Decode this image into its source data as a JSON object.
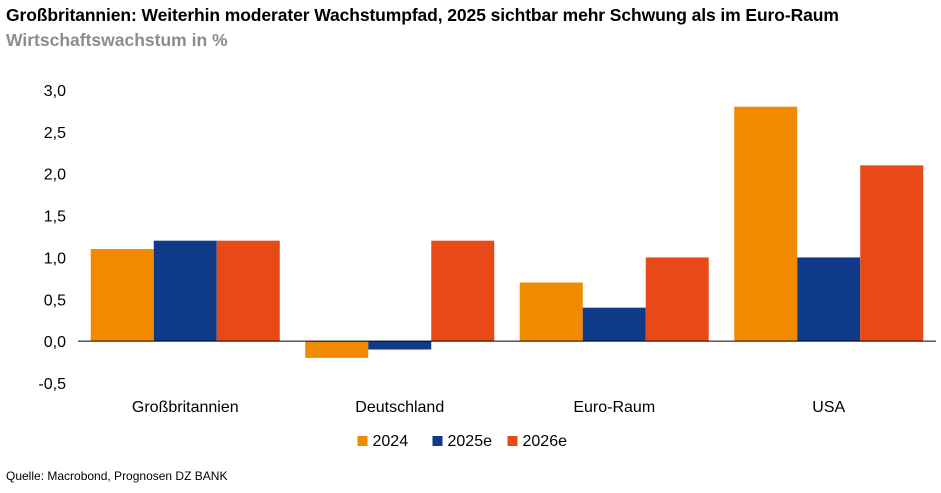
{
  "header": {
    "title": "Großbritannien: Weiterhin moderater Wachstumpfad, 2025 sichtbar mehr Schwung als im Euro-Raum",
    "subtitle": "Wirtschaftswachstum in %"
  },
  "footer": {
    "source": "Quelle: Macrobond, Prognosen DZ BANK"
  },
  "chart_data": {
    "type": "bar",
    "title": "Großbritannien: Weiterhin moderater Wachstumpfad, 2025 sichtbar mehr Schwung als im Euro-Raum",
    "subtitle": "Wirtschaftswachstum in %",
    "categories": [
      "Großbritannien",
      "Deutschland",
      "Euro-Raum",
      "USA"
    ],
    "series": [
      {
        "name": "2024",
        "color": "#f28a00",
        "values": [
          1.1,
          -0.2,
          0.7,
          2.8
        ]
      },
      {
        "name": "2025e",
        "color": "#0f3a8a",
        "values": [
          1.2,
          -0.1,
          0.4,
          1.0
        ]
      },
      {
        "name": "2026e",
        "color": "#e84a17",
        "values": [
          1.2,
          1.2,
          1.0,
          2.1
        ]
      }
    ],
    "ylim": [
      -0.5,
      3.0
    ],
    "yticks": [
      -0.5,
      0.0,
      0.5,
      1.0,
      1.5,
      2.0,
      2.5,
      3.0
    ],
    "ytick_labels": [
      "-0,5",
      "0,0",
      "0,5",
      "1,0",
      "1,5",
      "2,0",
      "2,5",
      "3,0"
    ],
    "grid": false,
    "legend_position": "bottom-center"
  }
}
